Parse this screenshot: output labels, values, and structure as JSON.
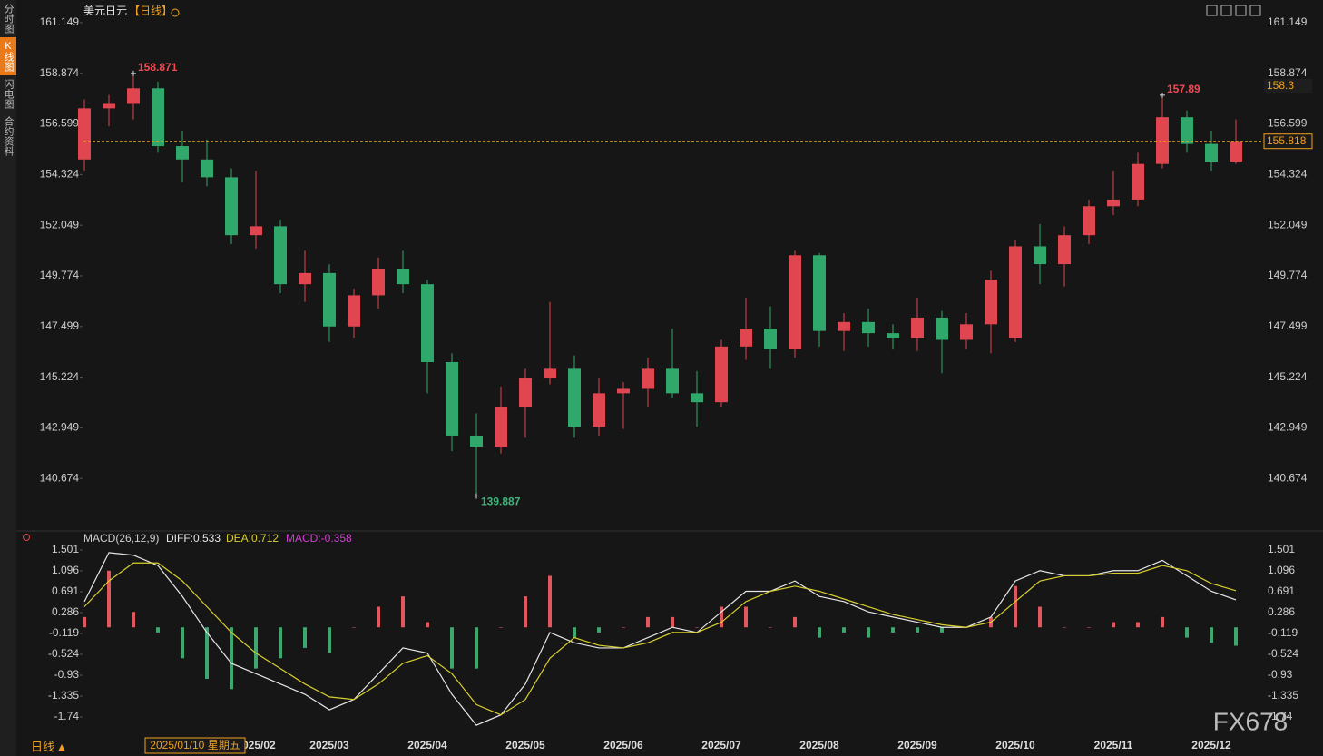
{
  "header": {
    "tabs": [
      "分时图",
      "K线图",
      "闪电图",
      "合约资料"
    ],
    "active_tab": 1,
    "footer": "日线",
    "cursor_label": "2025/01/10 星期五",
    "watermark": "FX678"
  },
  "chart_data": [
    {
      "type": "candlestick",
      "title": "美元日元",
      "subtitle": "【日线】",
      "categories": [
        null,
        null,
        null,
        null,
        null,
        null,
        null,
        "2025/02",
        null,
        null,
        "2025/03",
        null,
        null,
        null,
        "2025/04",
        null,
        null,
        null,
        "2025/05",
        null,
        null,
        null,
        "2025/06",
        null,
        null,
        null,
        "2025/07",
        null,
        null,
        null,
        "2025/08",
        null,
        null,
        null,
        "2025/09",
        null,
        null,
        null,
        "2025/10",
        null,
        null,
        null,
        "2025/11",
        null,
        null,
        null,
        "2025/12",
        null
      ],
      "open": [
        155.0,
        157.3,
        157.5,
        158.2,
        155.6,
        155.0,
        154.2,
        151.6,
        152.0,
        149.4,
        149.9,
        147.5,
        148.9,
        150.1,
        149.4,
        145.9,
        142.6,
        142.1,
        143.9,
        145.2,
        145.6,
        143.0,
        144.5,
        144.7,
        145.6,
        144.5,
        144.1,
        146.6,
        147.4,
        146.5,
        150.7,
        147.3,
        147.7,
        147.2,
        147.0,
        147.9,
        146.9,
        147.6,
        147.0,
        151.1,
        150.3,
        151.6,
        152.9,
        153.2,
        154.8,
        156.9,
        155.7,
        154.9
      ],
      "high": [
        157.7,
        157.9,
        158.871,
        158.5,
        156.3,
        155.9,
        154.6,
        154.5,
        152.3,
        150.9,
        150.3,
        149.2,
        150.6,
        150.9,
        149.6,
        146.3,
        143.6,
        144.8,
        145.6,
        148.6,
        146.2,
        145.2,
        145.0,
        146.1,
        147.4,
        145.5,
        146.9,
        148.8,
        148.4,
        150.9,
        150.8,
        148.1,
        148.3,
        147.6,
        148.8,
        148.2,
        148.1,
        150.0,
        151.4,
        152.1,
        152.0,
        153.2,
        154.5,
        155.3,
        157.89,
        157.2,
        156.3,
        156.8
      ],
      "low": [
        154.5,
        156.5,
        156.8,
        155.3,
        154.0,
        153.8,
        151.2,
        151.0,
        149.0,
        148.6,
        146.8,
        147.0,
        148.3,
        149.0,
        144.5,
        141.9,
        139.887,
        141.8,
        142.5,
        144.9,
        142.5,
        142.6,
        142.9,
        143.9,
        144.3,
        143.0,
        143.9,
        146.0,
        145.6,
        146.1,
        146.6,
        146.4,
        146.6,
        146.5,
        146.4,
        145.4,
        146.5,
        146.3,
        146.8,
        149.4,
        149.3,
        151.2,
        152.5,
        152.9,
        154.6,
        155.3,
        154.5,
        154.8
      ],
      "close": [
        157.3,
        157.5,
        158.2,
        155.6,
        155.0,
        154.2,
        151.6,
        152.0,
        149.4,
        149.9,
        147.5,
        148.9,
        150.1,
        149.4,
        145.9,
        142.6,
        142.1,
        143.9,
        145.2,
        145.6,
        143.0,
        144.5,
        144.7,
        145.6,
        144.5,
        144.1,
        146.6,
        147.4,
        146.5,
        150.7,
        147.3,
        147.7,
        147.2,
        147.0,
        147.9,
        146.9,
        147.6,
        149.6,
        151.1,
        150.3,
        151.6,
        152.9,
        153.2,
        154.8,
        156.9,
        155.7,
        154.9,
        155.818
      ],
      "up_color": "#e0464f",
      "down_color": "#31a86b",
      "ylim": [
        138.318,
        161.758
      ],
      "yticks": [
        161.149,
        158.874,
        156.599,
        154.324,
        152.049,
        149.774,
        147.499,
        145.224,
        142.949,
        140.674
      ],
      "annotations": [
        {
          "value": 158.871,
          "color": "#ef4b55"
        },
        {
          "value": 157.89,
          "color": "#ef4b55"
        },
        {
          "value": 139.887,
          "color": "#3fb37a"
        }
      ],
      "last_price": 155.818,
      "price_marker": 158.3,
      "accent_color": "#f0a020"
    },
    {
      "type": "macd",
      "title": "MACD(26,12,9)",
      "series": [
        {
          "name": "DIFF:0.533",
          "color": "#e6e6e6",
          "values": [
            0.5,
            1.45,
            1.4,
            1.2,
            0.6,
            -0.1,
            -0.7,
            -0.9,
            -1.1,
            -1.3,
            -1.6,
            -1.4,
            -0.9,
            -0.4,
            -0.5,
            -1.3,
            -1.9,
            -1.7,
            -1.1,
            -0.1,
            -0.3,
            -0.4,
            -0.4,
            -0.2,
            0.0,
            -0.1,
            0.3,
            0.7,
            0.7,
            0.9,
            0.6,
            0.5,
            0.3,
            0.2,
            0.1,
            0.0,
            0.0,
            0.2,
            0.9,
            1.1,
            1.0,
            1.0,
            1.1,
            1.1,
            1.3,
            1.0,
            0.7,
            0.533
          ]
        },
        {
          "name": "DEA:0.712",
          "color": "#d8cf2e",
          "values": [
            0.4,
            0.9,
            1.25,
            1.25,
            0.9,
            0.4,
            -0.1,
            -0.5,
            -0.8,
            -1.1,
            -1.35,
            -1.4,
            -1.1,
            -0.7,
            -0.55,
            -0.9,
            -1.5,
            -1.7,
            -1.4,
            -0.6,
            -0.2,
            -0.35,
            -0.4,
            -0.3,
            -0.1,
            -0.1,
            0.1,
            0.5,
            0.7,
            0.8,
            0.7,
            0.55,
            0.4,
            0.25,
            0.15,
            0.05,
            0.0,
            0.1,
            0.5,
            0.9,
            1.0,
            1.0,
            1.05,
            1.05,
            1.2,
            1.1,
            0.85,
            0.712
          ]
        },
        {
          "name": "MACD:-0.358",
          "color": "#d23fd2",
          "up_color": "#e0575d",
          "down_color": "#3fa66e",
          "values": [
            0.2,
            1.1,
            0.3,
            -0.1,
            -0.6,
            -1.0,
            -1.2,
            -0.8,
            -0.6,
            -0.4,
            -0.5,
            0.0,
            0.4,
            0.6,
            0.1,
            -0.8,
            -0.8,
            0.0,
            0.6,
            1.0,
            -0.2,
            -0.1,
            0.0,
            0.2,
            0.2,
            0.0,
            0.4,
            0.4,
            0.0,
            0.2,
            -0.2,
            -0.1,
            -0.2,
            -0.1,
            -0.1,
            -0.1,
            0.0,
            0.2,
            0.8,
            0.4,
            0.0,
            0.0,
            0.1,
            0.1,
            0.2,
            -0.2,
            -0.3,
            -0.358
          ]
        }
      ],
      "ylim": [
        -2.004,
        1.642
      ],
      "yticks": [
        1.501,
        1.096,
        0.691,
        0.286,
        -0.119,
        -0.524,
        -0.93,
        -1.335,
        -1.74
      ]
    }
  ]
}
